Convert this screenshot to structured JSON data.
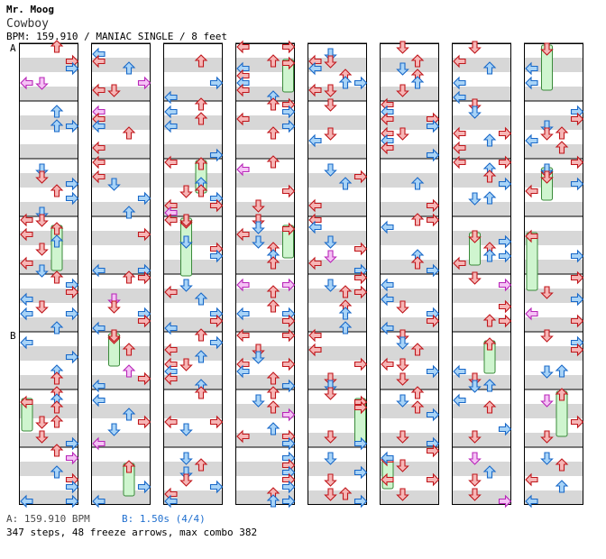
{
  "song": {
    "artist": "Mr. Moog",
    "title": "Cowboy",
    "meta": "BPM: 159.910 / MANIAC SINGLE / 8 feet"
  },
  "markers": {
    "a": "A",
    "b": "B"
  },
  "footer": {
    "bpm_a": "A: 159.910 BPM",
    "bpm_b": "B: 1.50s (4/4)",
    "summary": "347 steps, 48 freeze arrows, max combo 382"
  },
  "colors": {
    "red_arrow": "#f6b6b6",
    "red_stroke": "#c0161b",
    "blue_arrow": "#a9d4f7",
    "blue_stroke": "#1868c8",
    "pink_arrow": "#f5c2f5",
    "pink_stroke": "#b826b8",
    "freeze_fill": "#cff5cf",
    "freeze_stroke": "#3a8a3a",
    "gray_band": "#d7d7d7"
  },
  "layout": {
    "columns": 8,
    "measures_per_column": 8,
    "lanes": [
      "left",
      "down",
      "up",
      "right"
    ]
  }
}
